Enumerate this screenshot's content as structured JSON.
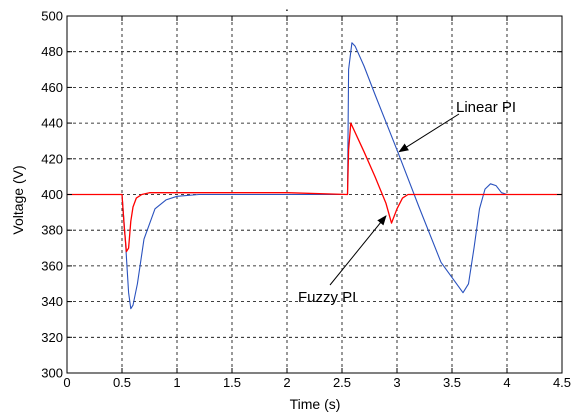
{
  "chart_data": {
    "type": "line",
    "title": ".",
    "xlabel": "Time (s)",
    "ylabel": "Voltage (V)",
    "xlim": [
      0,
      4.5
    ],
    "ylim": [
      300,
      500
    ],
    "x_ticks": [
      0,
      0.5,
      1,
      1.5,
      2,
      2.5,
      3,
      3.5,
      4,
      4.5
    ],
    "x_tick_labels": [
      "0",
      "0.5",
      "1",
      "1.5",
      "2",
      "2.5",
      "3",
      "3.5",
      "4",
      "4.5"
    ],
    "y_ticks": [
      300,
      320,
      340,
      360,
      380,
      400,
      420,
      440,
      460,
      480,
      500
    ],
    "y_tick_labels": [
      "300",
      "320",
      "340",
      "360",
      "380",
      "400",
      "420",
      "440",
      "460",
      "480",
      "500"
    ],
    "grid": true,
    "series": [
      {
        "name": "Linear PI",
        "color": "#2a52be",
        "x": [
          0,
          0.5,
          0.53,
          0.56,
          0.58,
          0.6,
          0.64,
          0.7,
          0.8,
          0.9,
          1.0,
          1.2,
          1.5,
          2.0,
          2.55,
          2.56,
          2.59,
          2.62,
          2.7,
          2.8,
          3.0,
          3.2,
          3.4,
          3.6,
          3.65,
          3.7,
          3.75,
          3.8,
          3.85,
          3.9,
          3.95,
          4.0,
          4.2,
          4.5
        ],
        "y": [
          400,
          400,
          375,
          345,
          336,
          338,
          350,
          375,
          392,
          397,
          399,
          400,
          400,
          400,
          400,
          470,
          485,
          483,
          472,
          456,
          425,
          393,
          362,
          345,
          350,
          370,
          392,
          403,
          406,
          405,
          401,
          400,
          400,
          400
        ]
      },
      {
        "name": "Fuzzy PI",
        "color": "#ff0000",
        "x": [
          0,
          0.5,
          0.52,
          0.54,
          0.56,
          0.58,
          0.6,
          0.63,
          0.68,
          0.75,
          0.9,
          1.2,
          2.0,
          2.55,
          2.56,
          2.58,
          2.7,
          2.8,
          2.9,
          2.95,
          3.0,
          3.05,
          3.1,
          3.3,
          4.5
        ],
        "y": [
          400,
          400,
          382,
          368,
          370,
          385,
          393,
          398,
          400,
          401,
          401,
          401,
          401,
          400,
          425,
          440,
          424,
          410,
          395,
          384,
          392,
          398,
          400,
          400,
          400
        ]
      }
    ],
    "annotations": [
      {
        "text": "Linear PI",
        "points_to": "Linear PI",
        "target": [
          3.02,
          424
        ]
      },
      {
        "text": "Fuzzy PI",
        "points_to": "Fuzzy PI",
        "target": [
          2.9,
          388
        ]
      }
    ]
  }
}
